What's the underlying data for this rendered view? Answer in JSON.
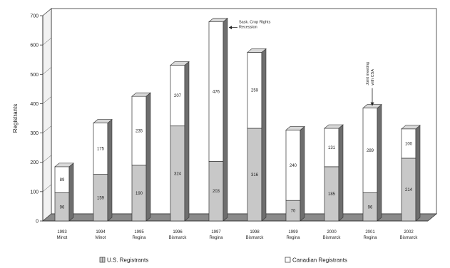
{
  "chart_data": {
    "type": "bar",
    "stacked": true,
    "three_d": true,
    "categories": [
      [
        "1993",
        "Minot"
      ],
      [
        "1994",
        "Minot"
      ],
      [
        "1995",
        "Regina"
      ],
      [
        "1996",
        "Bismarck"
      ],
      [
        "1997",
        "Regina"
      ],
      [
        "1998",
        "Bismarck"
      ],
      [
        "1999",
        "Regina"
      ],
      [
        "2000",
        "Bismarck"
      ],
      [
        "2001",
        "Regina"
      ],
      [
        "2002",
        "Bismarck"
      ]
    ],
    "series": [
      {
        "name": "U.S. Registrants",
        "values": [
          96,
          159,
          190,
          324,
          203,
          316,
          70,
          185,
          96,
          214
        ],
        "color": "#c8c8c8"
      },
      {
        "name": "Canadian Registrants",
        "values": [
          89,
          175,
          235,
          207,
          476,
          259,
          240,
          131,
          289,
          100
        ],
        "color": "#ffffff"
      }
    ],
    "ylabel": "Registrants",
    "ylim": [
      0,
      700
    ],
    "yticks": [
      0,
      100,
      200,
      300,
      400,
      500,
      600,
      700
    ],
    "legend_position": "bottom",
    "annotations": [
      {
        "text": [
          "Sask. Crop Rights",
          "Recession"
        ],
        "category_index": 4,
        "style": "arrow-left"
      },
      {
        "text": [
          "Joint meeting",
          "with CSA"
        ],
        "category_index": 8,
        "style": "arrow-down"
      }
    ]
  }
}
